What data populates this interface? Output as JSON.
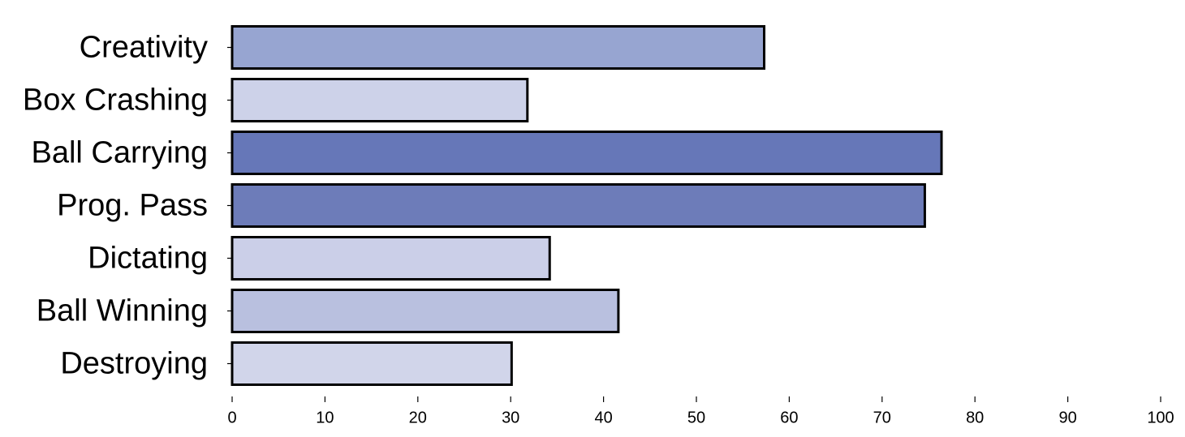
{
  "chart_data": {
    "type": "bar",
    "orientation": "horizontal",
    "categories": [
      "Creativity",
      "Box Crashing",
      "Ball Carrying",
      "Prog. Pass",
      "Dictating",
      "Ball Winning",
      "Destroying"
    ],
    "values": [
      57.3,
      31.8,
      76.4,
      74.6,
      34.2,
      41.6,
      30.1
    ],
    "colors": [
      "#97a5d1",
      "#cdd2e9",
      "#6677b8",
      "#6d7cb9",
      "#cbcfe8",
      "#b9c0df",
      "#d1d5ea"
    ],
    "xlim": [
      0,
      100
    ],
    "xticks": [
      0,
      10,
      20,
      30,
      40,
      50,
      60,
      70,
      80,
      90,
      100
    ]
  }
}
